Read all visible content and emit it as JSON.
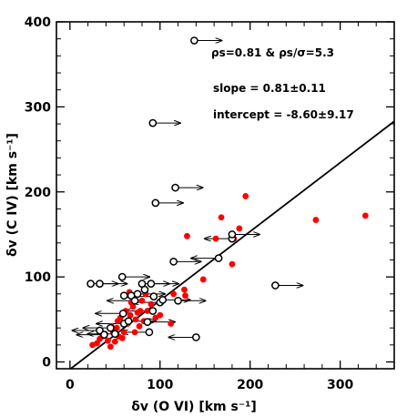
{
  "chart_data": {
    "type": "scatter",
    "xlabel": "δv (O VI) [km s⁻¹]",
    "ylabel": "δv (C IV) [km s⁻¹]",
    "xlim": [
      -15,
      360
    ],
    "ylim": [
      -8,
      400
    ],
    "xticks": [
      0,
      100,
      200,
      300
    ],
    "yticks": [
      0,
      100,
      200,
      300,
      400
    ],
    "grid": false,
    "annotations": [
      {
        "id": "rho",
        "text": "ρs=0.81 & ρs/σ=5.3"
      },
      {
        "id": "slope",
        "text": "slope = 0.81±0.11"
      },
      {
        "id": "intercept",
        "text": "intercept = -8.60±9.17"
      }
    ],
    "fit_line": {
      "slope": 0.81,
      "intercept": -8.6
    },
    "series": [
      {
        "color": "#ff0000",
        "marker": "filled-circle",
        "points": [
          [
            25,
            20
          ],
          [
            30,
            22
          ],
          [
            33,
            27
          ],
          [
            36,
            30
          ],
          [
            39,
            33
          ],
          [
            42,
            25
          ],
          [
            45,
            18
          ],
          [
            46,
            42
          ],
          [
            48,
            35
          ],
          [
            50,
            24
          ],
          [
            52,
            40
          ],
          [
            53,
            48
          ],
          [
            54,
            30
          ],
          [
            56,
            52
          ],
          [
            58,
            28
          ],
          [
            60,
            35
          ],
          [
            62,
            60
          ],
          [
            64,
            45
          ],
          [
            66,
            82
          ],
          [
            67,
            55
          ],
          [
            68,
            70
          ],
          [
            70,
            65
          ],
          [
            72,
            35
          ],
          [
            73,
            50
          ],
          [
            75,
            58
          ],
          [
            77,
            42
          ],
          [
            78,
            60
          ],
          [
            80,
            72
          ],
          [
            82,
            48
          ],
          [
            84,
            80
          ],
          [
            86,
            60
          ],
          [
            90,
            68
          ],
          [
            95,
            52
          ],
          [
            100,
            55
          ],
          [
            112,
            45
          ],
          [
            115,
            80
          ],
          [
            127,
            85
          ],
          [
            128,
            78
          ],
          [
            130,
            148
          ],
          [
            148,
            97
          ],
          [
            162,
            145
          ],
          [
            168,
            170
          ],
          [
            180,
            115
          ],
          [
            182,
            145
          ],
          [
            188,
            157
          ],
          [
            195,
            195
          ],
          [
            273,
            167
          ],
          [
            328,
            172
          ]
        ]
      },
      {
        "color": "#000000",
        "marker": "open-circle",
        "points": [
          [
            23,
            92
          ],
          [
            33,
            92
          ],
          [
            33,
            37
          ],
          [
            38,
            32
          ],
          [
            45,
            40
          ],
          [
            50,
            33
          ],
          [
            58,
            100
          ],
          [
            59,
            57
          ],
          [
            60,
            45
          ],
          [
            60,
            78
          ],
          [
            65,
            48
          ],
          [
            68,
            78
          ],
          [
            72,
            72
          ],
          [
            75,
            80
          ],
          [
            80,
            92
          ],
          [
            83,
            85
          ],
          [
            86,
            47
          ],
          [
            88,
            35
          ],
          [
            90,
            92
          ],
          [
            92,
            281
          ],
          [
            92,
            60
          ],
          [
            93,
            77
          ],
          [
            95,
            187
          ],
          [
            100,
            70
          ],
          [
            103,
            73
          ],
          [
            115,
            118
          ],
          [
            117,
            205
          ],
          [
            120,
            72
          ],
          [
            138,
            378
          ],
          [
            140,
            29
          ],
          [
            165,
            122
          ],
          [
            180,
            145
          ],
          [
            180,
            150
          ],
          [
            228,
            90
          ]
        ]
      }
    ],
    "limit_arrows": [
      {
        "x": 23,
        "y": 92,
        "dir": "right"
      },
      {
        "x": 33,
        "y": 92,
        "dir": "right"
      },
      {
        "x": 33,
        "y": 37,
        "dir": "left"
      },
      {
        "x": 38,
        "y": 32,
        "dir": "left"
      },
      {
        "x": 45,
        "y": 40,
        "dir": "left"
      },
      {
        "x": 50,
        "y": 33,
        "dir": "left"
      },
      {
        "x": 58,
        "y": 100,
        "dir": "right"
      },
      {
        "x": 59,
        "y": 57,
        "dir": "left"
      },
      {
        "x": 60,
        "y": 45,
        "dir": "left"
      },
      {
        "x": 65,
        "y": 48,
        "dir": "right"
      },
      {
        "x": 72,
        "y": 72,
        "dir": "left"
      },
      {
        "x": 75,
        "y": 80,
        "dir": "right"
      },
      {
        "x": 80,
        "y": 92,
        "dir": "right"
      },
      {
        "x": 86,
        "y": 47,
        "dir": "right"
      },
      {
        "x": 88,
        "y": 35,
        "dir": "left"
      },
      {
        "x": 90,
        "y": 92,
        "dir": "right"
      },
      {
        "x": 92,
        "y": 281,
        "dir": "right"
      },
      {
        "x": 92,
        "y": 60,
        "dir": "left"
      },
      {
        "x": 93,
        "y": 77,
        "dir": "left"
      },
      {
        "x": 95,
        "y": 187,
        "dir": "right"
      },
      {
        "x": 100,
        "y": 70,
        "dir": "left"
      },
      {
        "x": 103,
        "y": 73,
        "dir": "right"
      },
      {
        "x": 115,
        "y": 118,
        "dir": "right"
      },
      {
        "x": 117,
        "y": 205,
        "dir": "right"
      },
      {
        "x": 120,
        "y": 72,
        "dir": "right"
      },
      {
        "x": 138,
        "y": 378,
        "dir": "right"
      },
      {
        "x": 140,
        "y": 29,
        "dir": "left"
      },
      {
        "x": 165,
        "y": 122,
        "dir": "left"
      },
      {
        "x": 180,
        "y": 145,
        "dir": "left"
      },
      {
        "x": 180,
        "y": 150,
        "dir": "right"
      },
      {
        "x": 228,
        "y": 90,
        "dir": "right"
      }
    ]
  }
}
